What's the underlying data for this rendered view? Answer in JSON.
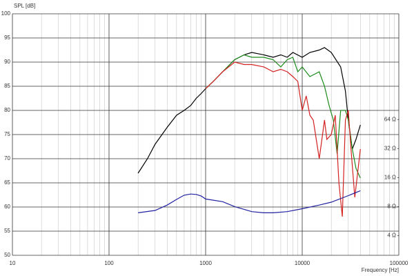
{
  "chart_data": {
    "type": "line",
    "ylabel": "SPL [dB]",
    "xlabel": "Frequency [Hz]",
    "xscale": "log",
    "y2scale": "log",
    "grid": true,
    "xlim": [
      10,
      100000
    ],
    "xticks": [
      10,
      100,
      1000,
      10000,
      100000
    ],
    "xminorticks": [
      20,
      30,
      40,
      50,
      60,
      70,
      80,
      90,
      200,
      300,
      400,
      500,
      600,
      700,
      800,
      900,
      2000,
      3000,
      4000,
      5000,
      6000,
      7000,
      8000,
      9000,
      20000,
      30000,
      40000,
      50000,
      60000,
      70000,
      80000,
      90000
    ],
    "ylim": [
      50,
      100
    ],
    "yticks": [
      50,
      55,
      60,
      65,
      70,
      75,
      80,
      85,
      90,
      95,
      100
    ],
    "y2lim": [
      2.5,
      800
    ],
    "y2ticks": [
      {
        "value": 4,
        "label": "4 Ω"
      },
      {
        "value": 8,
        "label": "8 Ω"
      },
      {
        "value": 16,
        "label": "16 Ω"
      },
      {
        "value": 32,
        "label": "32 Ω"
      },
      {
        "value": 64,
        "label": "64 Ω"
      }
    ],
    "series": [
      {
        "color": "#000000",
        "x": [
          200,
          250,
          300,
          400,
          500,
          600,
          700,
          800,
          900,
          1000,
          1200,
          1500,
          2000,
          2500,
          3000,
          4000,
          5000,
          6000,
          7000,
          8000,
          10000,
          12000,
          15000,
          17000,
          20000,
          25000,
          28000,
          30000,
          33000,
          36000,
          40000
        ],
        "values": [
          67,
          70,
          73,
          76.5,
          79,
          80,
          81,
          82.5,
          83.5,
          84.5,
          86,
          88,
          90.5,
          91.5,
          92,
          91.5,
          91,
          91.5,
          91,
          92,
          91,
          92,
          92.5,
          93,
          92,
          89,
          84,
          78,
          72,
          74,
          77
        ]
      },
      {
        "color": "#1a8a1a",
        "x": [
          1000,
          1200,
          1500,
          2000,
          2500,
          3000,
          4000,
          5000,
          6000,
          7000,
          8000,
          9000,
          10000,
          12000,
          15000,
          17000,
          19000,
          21000,
          23000,
          25000,
          28000,
          30000,
          33000,
          36000,
          40000
        ],
        "values": [
          84.5,
          86,
          88,
          90.5,
          91.5,
          91,
          91,
          90.5,
          89,
          90.5,
          91,
          88,
          89,
          87,
          88,
          85,
          81,
          78,
          71,
          80,
          80,
          78,
          72,
          68,
          66
        ]
      },
      {
        "color": "#d42020",
        "x": [
          1000,
          1200,
          1500,
          2000,
          2500,
          3000,
          4000,
          5000,
          6000,
          7000,
          8000,
          9000,
          10000,
          11000,
          12000,
          13000,
          15000,
          17000,
          18000,
          20000,
          22000,
          24000,
          26000,
          28000,
          30000,
          32000,
          35000,
          40000
        ],
        "values": [
          84.5,
          86,
          88,
          90,
          89.5,
          89.5,
          89,
          88,
          88.5,
          88,
          87,
          86,
          80,
          83,
          79,
          78,
          70,
          78,
          74,
          75,
          79,
          65,
          58,
          78,
          80,
          72,
          62,
          72
        ]
      },
      {
        "color": "#2020a0",
        "axis": "y2",
        "x": [
          200,
          300,
          400,
          500,
          600,
          700,
          800,
          900,
          1000,
          1500,
          2000,
          3000,
          4000,
          5000,
          7000,
          10000,
          15000,
          20000,
          30000,
          40000
        ],
        "values": [
          6.9,
          7.3,
          8.3,
          9.5,
          10.5,
          10.8,
          10.7,
          10.3,
          9.6,
          9.0,
          8.0,
          7.1,
          6.9,
          6.9,
          7.1,
          7.6,
          8.3,
          8.9,
          10.4,
          11.7
        ]
      }
    ]
  }
}
